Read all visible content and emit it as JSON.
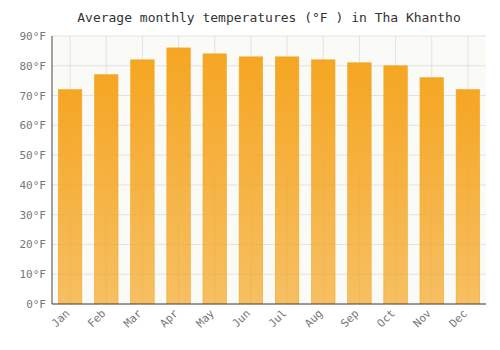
{
  "chart_data": {
    "type": "bar",
    "title": "Average monthly temperatures (°F ) in Tha Khantho",
    "categories": [
      "Jan",
      "Feb",
      "Mar",
      "Apr",
      "May",
      "Jun",
      "Jul",
      "Aug",
      "Sep",
      "Oct",
      "Nov",
      "Dec"
    ],
    "values": [
      72,
      77,
      82,
      86,
      84,
      83,
      83,
      82,
      81,
      80,
      76,
      72
    ],
    "color": "#F5A623",
    "ylim": [
      0,
      90
    ],
    "yticks": [
      {
        "value": 0,
        "label": "0°F"
      },
      {
        "value": 10,
        "label": "10°F"
      },
      {
        "value": 20,
        "label": "20°F"
      },
      {
        "value": 30,
        "label": "30°F"
      },
      {
        "value": 40,
        "label": "40°F"
      },
      {
        "value": 50,
        "label": "50°F"
      },
      {
        "value": 60,
        "label": "60°F"
      },
      {
        "value": 70,
        "label": "70°F"
      },
      {
        "value": 80,
        "label": "80°F"
      },
      {
        "value": 90,
        "label": "90°F"
      }
    ],
    "grid": true
  }
}
